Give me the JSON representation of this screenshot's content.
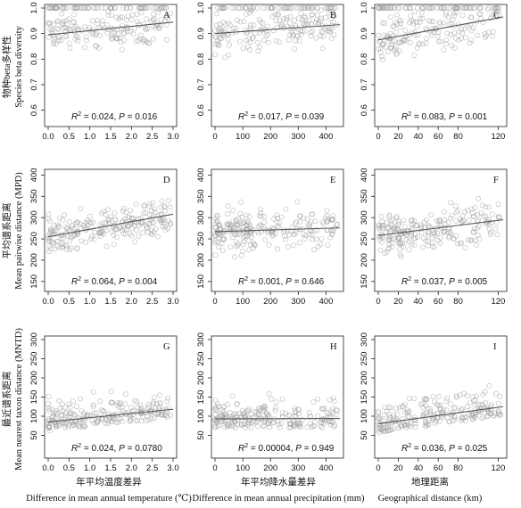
{
  "figure": {
    "row_labels": [
      {
        "cn": "物种beta多样性",
        "en": "Species beta diversity"
      },
      {
        "cn": "平均谱系距离",
        "en": "Mean pairwise distance (MPD)"
      },
      {
        "cn": "最近谱系距离",
        "en": "Mean nearest taxon distance (MNTD)"
      }
    ],
    "col_labels": [
      {
        "cn": "年平均温度差异",
        "en": "Difference in mean annual temperature (℃)"
      },
      {
        "cn": "年平均降水量差异",
        "en": "Difference in mean annual precipitation (mm)"
      },
      {
        "cn": "地理距离",
        "en": "Geographical distance (km)"
      }
    ]
  },
  "chart_data": [
    {
      "panel": "A",
      "type": "scatter",
      "row": 0,
      "col": 0,
      "xlim": [
        0,
        3.0
      ],
      "ylim": [
        0.55,
        1.0
      ],
      "xticks": [
        0,
        0.5,
        1.0,
        1.5,
        2.0,
        2.5,
        3.0
      ],
      "xtick_labels": [
        "0.0",
        "0.5",
        "1.0",
        "1.5",
        "2.0",
        "2.5",
        "3.0"
      ],
      "yticks": [
        0.6,
        0.7,
        0.8,
        0.9,
        1.0
      ],
      "ytick_labels": [
        "0.6",
        "0.7",
        "0.8",
        "0.9",
        "1.0"
      ],
      "fit": {
        "x": [
          0,
          3.0
        ],
        "y": [
          0.895,
          0.945
        ]
      },
      "stats": {
        "r2": "0.024",
        "p": "0.016"
      }
    },
    {
      "panel": "B",
      "type": "scatter",
      "row": 0,
      "col": 1,
      "xlim": [
        0,
        450
      ],
      "ylim": [
        0.55,
        1.0
      ],
      "xticks": [
        0,
        100,
        200,
        300,
        400
      ],
      "xtick_labels": [
        "0",
        "100",
        "200",
        "300",
        "400"
      ],
      "yticks": [
        0.6,
        0.7,
        0.8,
        0.9,
        1.0
      ],
      "ytick_labels": [
        "0.6",
        "0.7",
        "0.8",
        "0.9",
        "1.0"
      ],
      "fit": {
        "x": [
          0,
          450
        ],
        "y": [
          0.9,
          0.935
        ]
      },
      "stats": {
        "r2": "0.017",
        "p": "0.039"
      }
    },
    {
      "panel": "C",
      "type": "scatter",
      "row": 0,
      "col": 2,
      "xlim": [
        0,
        125
      ],
      "ylim": [
        0.55,
        1.0
      ],
      "xticks": [
        0,
        20,
        40,
        60,
        80,
        120
      ],
      "xtick_labels": [
        "0",
        "20",
        "40",
        "60",
        "80",
        "120"
      ],
      "yticks": [
        0.6,
        0.7,
        0.8,
        0.9,
        1.0
      ],
      "ytick_labels": [
        "0.6",
        "0.7",
        "0.8",
        "0.9",
        "1.0"
      ],
      "fit": {
        "x": [
          0,
          125
        ],
        "y": [
          0.875,
          0.965
        ]
      },
      "stats": {
        "r2": "0.083",
        "p": "0.001"
      }
    },
    {
      "panel": "D",
      "type": "scatter",
      "row": 1,
      "col": 0,
      "xlim": [
        0,
        3.0
      ],
      "ylim": [
        135,
        405
      ],
      "xticks": [
        0,
        0.5,
        1.0,
        1.5,
        2.0,
        2.5,
        3.0
      ],
      "xtick_labels": [
        "0.0",
        "0.5",
        "1.0",
        "1.5",
        "2.0",
        "2.5",
        "3.0"
      ],
      "yticks": [
        150,
        200,
        250,
        300,
        350,
        400
      ],
      "ytick_labels": [
        "150",
        "200",
        "250",
        "300",
        "350",
        "400"
      ],
      "fit": {
        "x": [
          0,
          3.0
        ],
        "y": [
          255,
          308
        ]
      },
      "stats": {
        "r2": "0.064",
        "p": "0.004"
      }
    },
    {
      "panel": "E",
      "type": "scatter",
      "row": 1,
      "col": 1,
      "xlim": [
        0,
        450
      ],
      "ylim": [
        135,
        405
      ],
      "xticks": [
        0,
        100,
        200,
        300,
        400
      ],
      "xtick_labels": [
        "0",
        "100",
        "200",
        "300",
        "400"
      ],
      "yticks": [
        150,
        200,
        250,
        300,
        350,
        400
      ],
      "ytick_labels": [
        "150",
        "200",
        "250",
        "300",
        "350",
        "400"
      ],
      "fit": {
        "x": [
          0,
          450
        ],
        "y": [
          267,
          276
        ]
      },
      "stats": {
        "r2": "0.001",
        "p": "0.646"
      }
    },
    {
      "panel": "F",
      "type": "scatter",
      "row": 1,
      "col": 2,
      "xlim": [
        0,
        125
      ],
      "ylim": [
        135,
        405
      ],
      "xticks": [
        0,
        20,
        40,
        60,
        80,
        120
      ],
      "xtick_labels": [
        "0",
        "20",
        "40",
        "60",
        "80",
        "120"
      ],
      "yticks": [
        150,
        200,
        250,
        300,
        350,
        400
      ],
      "ytick_labels": [
        "150",
        "200",
        "250",
        "300",
        "350",
        "400"
      ],
      "fit": {
        "x": [
          0,
          125
        ],
        "y": [
          258,
          295
        ]
      },
      "stats": {
        "r2": "0.037",
        "p": "0.005"
      }
    },
    {
      "panel": "G",
      "type": "scatter",
      "row": 2,
      "col": 0,
      "xlim": [
        0,
        3.0
      ],
      "ylim": [
        0,
        300
      ],
      "xticks": [
        0,
        0.5,
        1.0,
        1.5,
        2.0,
        2.5,
        3.0
      ],
      "xtick_labels": [
        "0.0",
        "0.5",
        "1.0",
        "1.5",
        "2.0",
        "2.5",
        "3.0"
      ],
      "yticks": [
        50,
        100,
        150,
        200,
        250,
        300
      ],
      "ytick_labels": [
        "50",
        "100",
        "150",
        "200",
        "250",
        "300"
      ],
      "fit": {
        "x": [
          0,
          3.0
        ],
        "y": [
          85,
          118
        ]
      },
      "stats": {
        "r2": "0.024",
        "p": "0.0780"
      }
    },
    {
      "panel": "H",
      "type": "scatter",
      "row": 2,
      "col": 1,
      "xlim": [
        0,
        450
      ],
      "ylim": [
        0,
        300
      ],
      "xticks": [
        0,
        100,
        200,
        300,
        400
      ],
      "xtick_labels": [
        "0",
        "100",
        "200",
        "300",
        "400"
      ],
      "yticks": [
        50,
        100,
        150,
        200,
        250,
        300
      ],
      "ytick_labels": [
        "50",
        "100",
        "150",
        "200",
        "250",
        "300"
      ],
      "fit": {
        "x": [
          0,
          450
        ],
        "y": [
          93,
          94
        ]
      },
      "stats": {
        "r2": "0.00004",
        "p": "0.949"
      }
    },
    {
      "panel": "I",
      "type": "scatter",
      "row": 2,
      "col": 2,
      "xlim": [
        0,
        125
      ],
      "ylim": [
        0,
        300
      ],
      "xticks": [
        0,
        20,
        40,
        60,
        80,
        120
      ],
      "xtick_labels": [
        "0",
        "20",
        "40",
        "60",
        "80",
        "120"
      ],
      "yticks": [
        50,
        100,
        150,
        200,
        250,
        300
      ],
      "ytick_labels": [
        "50",
        "100",
        "150",
        "200",
        "250",
        "300"
      ],
      "fit": {
        "x": [
          0,
          125
        ],
        "y": [
          80,
          125
        ]
      },
      "stats": {
        "r2": "0.036",
        "p": "0.025"
      }
    }
  ]
}
